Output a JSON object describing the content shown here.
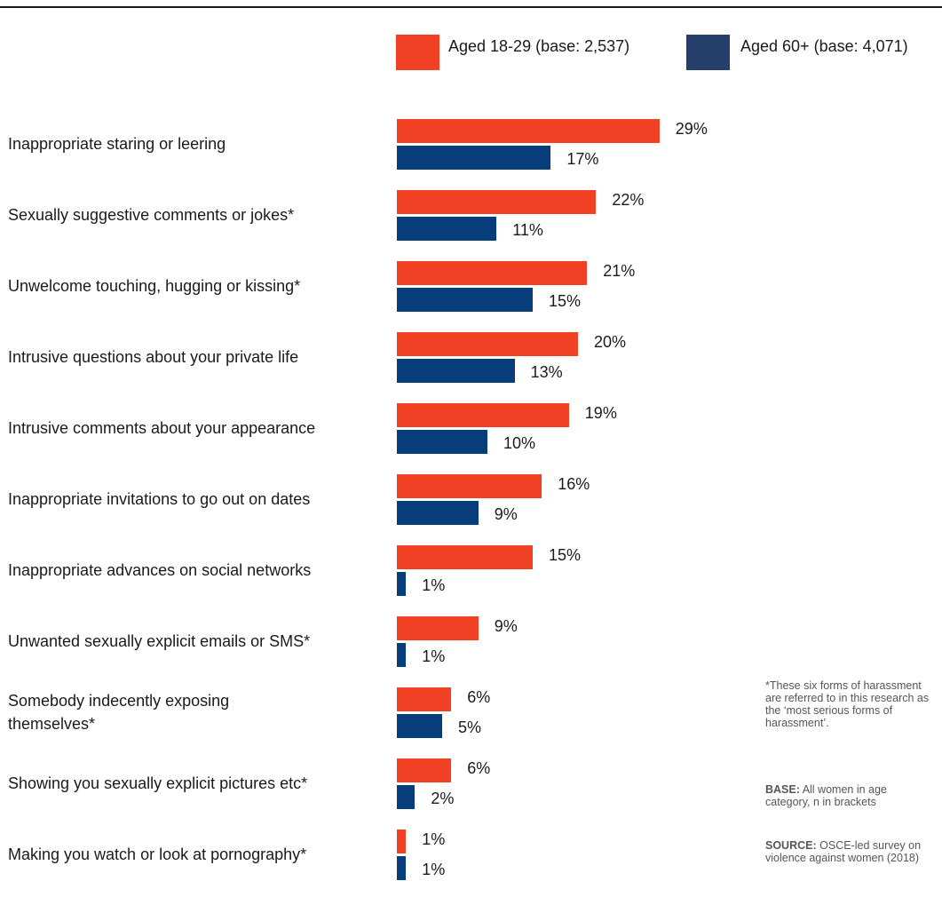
{
  "chart_data": {
    "type": "bar",
    "orientation": "horizontal",
    "categories": [
      "Inappropriate staring or leering",
      "Sexually suggestive comments or jokes*",
      "Unwelcome touching, hugging or kissing*",
      "Intrusive questions about your private life",
      "Intrusive comments about your appearance",
      "Inappropriate invitations to go out on dates",
      "Inappropriate advances on social networks",
      "Unwanted sexually explicit emails or SMS*",
      "Somebody indecently exposing themselves*",
      "Showing you sexually explicit pictures etc*",
      "Making you watch or look at pornography*"
    ],
    "series": [
      {
        "name": "Aged 18-29 (base: 2,537)",
        "color": "#f04124",
        "values": [
          29,
          22,
          21,
          20,
          19,
          16,
          15,
          9,
          6,
          6,
          1
        ],
        "labels": [
          "29%",
          "22%",
          "21%",
          "20%",
          "19%",
          "16%",
          "15%",
          "9%",
          "6%",
          "6%",
          "1%"
        ]
      },
      {
        "name": "Aged 60+ (base: 4,071)",
        "color": "#063d7a",
        "values": [
          17,
          11,
          15,
          13,
          10,
          9,
          1,
          1,
          5,
          2,
          1
        ],
        "labels": [
          "17%",
          "11%",
          "15%",
          "13%",
          "10%",
          "9%",
          "1%",
          "1%",
          "5%",
          "2%",
          "1%"
        ]
      }
    ],
    "legend_colors": [
      "#f04124",
      "#263f6a"
    ],
    "xlim": [
      0,
      100
    ],
    "grid": false,
    "legend_position": "top"
  },
  "notes": {
    "footnote": "*These six forms of harassment are referred to in this research as the ‘most serious forms of harassment’.",
    "base_label": "BASE:",
    "base_text": " All women in age category, n in brackets",
    "source_label": "SOURCE:",
    "source_text": " OSCE-led survey on violence against women (2018)"
  }
}
